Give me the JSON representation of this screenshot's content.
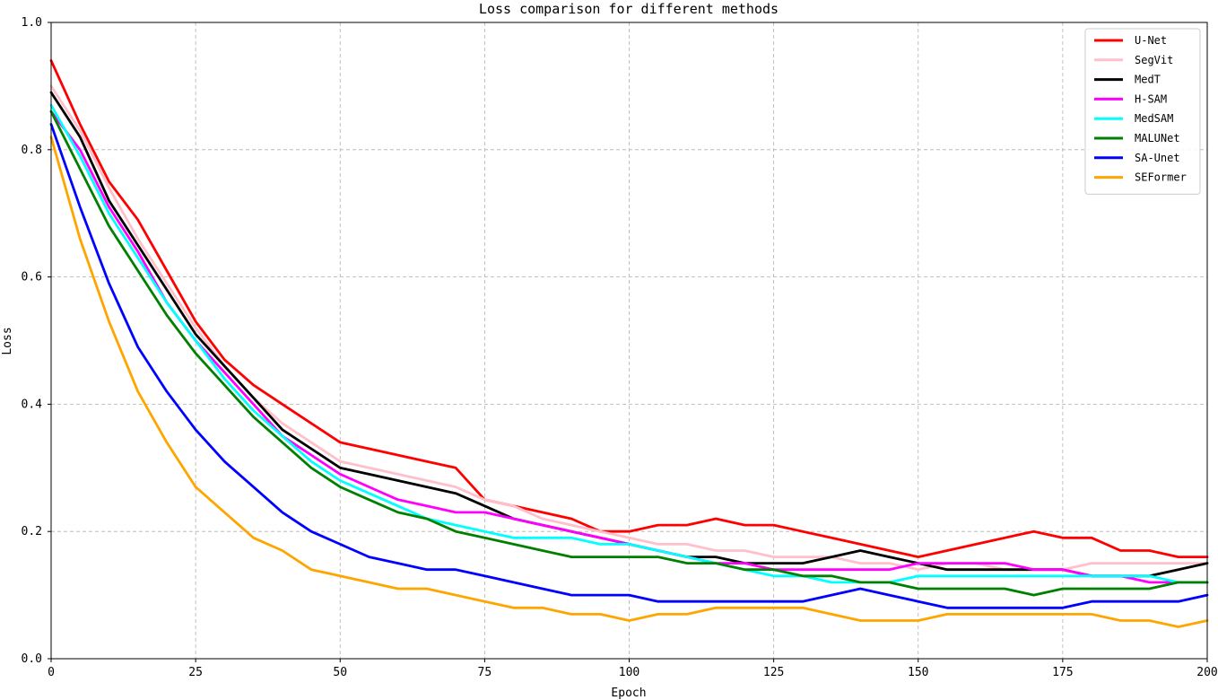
{
  "chart_data": {
    "type": "line",
    "title": "Loss comparison for different methods",
    "xlabel": "Epoch",
    "ylabel": "Loss",
    "xlim": [
      0,
      200
    ],
    "ylim": [
      0,
      1.0
    ],
    "xticks": [
      0,
      25,
      50,
      75,
      100,
      125,
      150,
      175,
      200
    ],
    "yticks": [
      0.0,
      0.2,
      0.4,
      0.6,
      0.8,
      1.0
    ],
    "grid": true,
    "legend_position": "top-right",
    "x": [
      0,
      5,
      10,
      15,
      20,
      25,
      30,
      35,
      40,
      45,
      50,
      55,
      60,
      65,
      70,
      75,
      80,
      85,
      90,
      95,
      100,
      105,
      110,
      115,
      120,
      125,
      130,
      135,
      140,
      145,
      150,
      155,
      160,
      165,
      170,
      175,
      180,
      185,
      190,
      195,
      200
    ],
    "series": [
      {
        "name": "U-Net",
        "color": "#ff0000",
        "values": [
          0.94,
          0.84,
          0.75,
          0.69,
          0.61,
          0.53,
          0.47,
          0.43,
          0.4,
          0.37,
          0.34,
          0.33,
          0.32,
          0.31,
          0.3,
          0.25,
          0.24,
          0.23,
          0.22,
          0.2,
          0.2,
          0.21,
          0.21,
          0.22,
          0.21,
          0.21,
          0.2,
          0.19,
          0.18,
          0.17,
          0.16,
          0.17,
          0.18,
          0.19,
          0.2,
          0.19,
          0.19,
          0.17,
          0.17,
          0.16,
          0.16
        ]
      },
      {
        "name": "SegVit",
        "color": "#ffc0cb",
        "values": [
          0.9,
          0.83,
          0.74,
          0.66,
          0.59,
          0.52,
          0.46,
          0.41,
          0.37,
          0.34,
          0.31,
          0.3,
          0.29,
          0.28,
          0.27,
          0.25,
          0.24,
          0.22,
          0.21,
          0.2,
          0.19,
          0.18,
          0.18,
          0.17,
          0.17,
          0.16,
          0.16,
          0.16,
          0.15,
          0.15,
          0.14,
          0.15,
          0.15,
          0.14,
          0.14,
          0.14,
          0.15,
          0.15,
          0.15,
          0.15,
          0.15
        ]
      },
      {
        "name": "MedT",
        "color": "#000000",
        "values": [
          0.89,
          0.82,
          0.72,
          0.65,
          0.58,
          0.51,
          0.46,
          0.41,
          0.36,
          0.33,
          0.3,
          0.29,
          0.28,
          0.27,
          0.26,
          0.24,
          0.22,
          0.21,
          0.2,
          0.19,
          0.18,
          0.17,
          0.16,
          0.16,
          0.15,
          0.15,
          0.15,
          0.16,
          0.17,
          0.16,
          0.15,
          0.14,
          0.14,
          0.14,
          0.14,
          0.14,
          0.13,
          0.13,
          0.13,
          0.14,
          0.15
        ]
      },
      {
        "name": "H-SAM",
        "color": "#ff00ff",
        "values": [
          0.86,
          0.8,
          0.71,
          0.64,
          0.56,
          0.5,
          0.45,
          0.4,
          0.35,
          0.32,
          0.29,
          0.27,
          0.25,
          0.24,
          0.23,
          0.23,
          0.22,
          0.21,
          0.2,
          0.19,
          0.18,
          0.17,
          0.16,
          0.15,
          0.15,
          0.14,
          0.14,
          0.14,
          0.14,
          0.14,
          0.15,
          0.15,
          0.15,
          0.15,
          0.14,
          0.14,
          0.13,
          0.13,
          0.12,
          0.12,
          0.12
        ]
      },
      {
        "name": "MedSAM",
        "color": "#00ffff",
        "values": [
          0.87,
          0.79,
          0.7,
          0.63,
          0.56,
          0.5,
          0.44,
          0.39,
          0.35,
          0.31,
          0.28,
          0.26,
          0.24,
          0.22,
          0.21,
          0.2,
          0.19,
          0.19,
          0.19,
          0.18,
          0.18,
          0.17,
          0.16,
          0.15,
          0.14,
          0.13,
          0.13,
          0.12,
          0.12,
          0.12,
          0.13,
          0.13,
          0.13,
          0.13,
          0.13,
          0.13,
          0.13,
          0.13,
          0.13,
          0.12,
          0.12
        ]
      },
      {
        "name": "MALUNet",
        "color": "#008000",
        "values": [
          0.86,
          0.77,
          0.68,
          0.61,
          0.54,
          0.48,
          0.43,
          0.38,
          0.34,
          0.3,
          0.27,
          0.25,
          0.23,
          0.22,
          0.2,
          0.19,
          0.18,
          0.17,
          0.16,
          0.16,
          0.16,
          0.16,
          0.15,
          0.15,
          0.14,
          0.14,
          0.13,
          0.13,
          0.12,
          0.12,
          0.11,
          0.11,
          0.11,
          0.11,
          0.1,
          0.11,
          0.11,
          0.11,
          0.11,
          0.12,
          0.12
        ]
      },
      {
        "name": "SA-Unet",
        "color": "#0000ff",
        "values": [
          0.84,
          0.71,
          0.59,
          0.49,
          0.42,
          0.36,
          0.31,
          0.27,
          0.23,
          0.2,
          0.18,
          0.16,
          0.15,
          0.14,
          0.14,
          0.13,
          0.12,
          0.11,
          0.1,
          0.1,
          0.1,
          0.09,
          0.09,
          0.09,
          0.09,
          0.09,
          0.09,
          0.1,
          0.11,
          0.1,
          0.09,
          0.08,
          0.08,
          0.08,
          0.08,
          0.08,
          0.09,
          0.09,
          0.09,
          0.09,
          0.1
        ]
      },
      {
        "name": "SEFormer",
        "color": "#ffa500",
        "values": [
          0.82,
          0.66,
          0.53,
          0.42,
          0.34,
          0.27,
          0.23,
          0.19,
          0.17,
          0.14,
          0.13,
          0.12,
          0.11,
          0.11,
          0.1,
          0.09,
          0.08,
          0.08,
          0.07,
          0.07,
          0.06,
          0.07,
          0.07,
          0.08,
          0.08,
          0.08,
          0.08,
          0.07,
          0.06,
          0.06,
          0.06,
          0.07,
          0.07,
          0.07,
          0.07,
          0.07,
          0.07,
          0.06,
          0.06,
          0.05,
          0.06
        ]
      }
    ]
  }
}
